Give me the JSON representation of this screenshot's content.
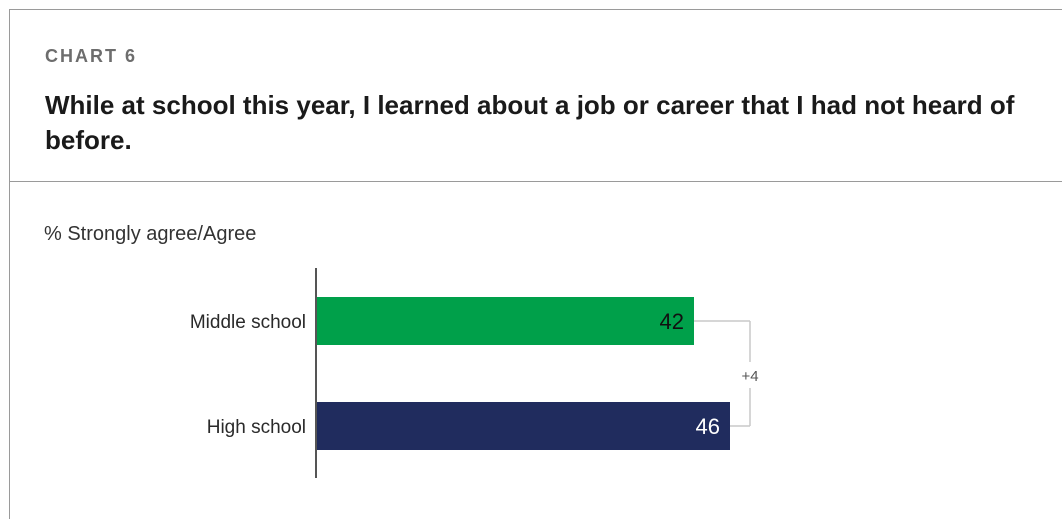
{
  "header": {
    "kicker": "CHART 6",
    "title": "While at school this year, I learned about a job or career that I had not heard of before."
  },
  "chart_data": {
    "type": "bar",
    "orientation": "horizontal",
    "subtitle": "% Strongly agree/Agree",
    "categories": [
      "Middle school",
      "High school"
    ],
    "values": [
      42,
      46
    ],
    "colors": [
      "#00a04a",
      "#202c5e"
    ],
    "label_colors": [
      "#111111",
      "#ffffff"
    ],
    "difference_label": "+4",
    "xlim": [
      0,
      100
    ]
  }
}
